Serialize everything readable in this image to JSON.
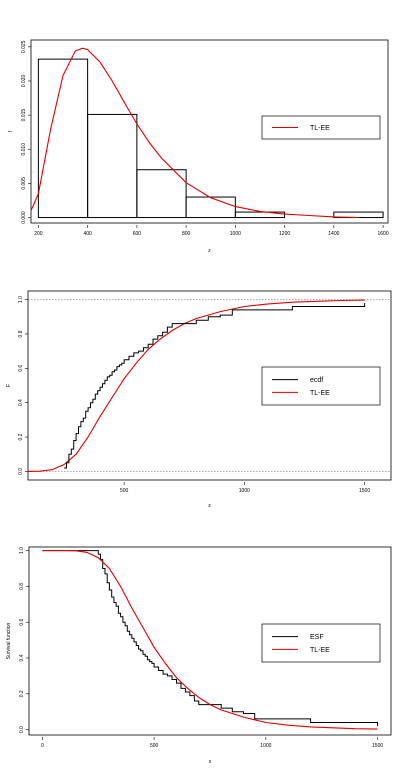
{
  "colors": {
    "fit": "#e00000",
    "data": "#000000"
  },
  "chart_data": [
    {
      "type": "histogram",
      "xlabel": "z",
      "ylabel": "f",
      "xlim": [
        170,
        1620
      ],
      "ylim": [
        -0.0008,
        0.026
      ],
      "xticks": [
        "200",
        "400",
        "600",
        "800",
        "1000",
        "1200",
        "1400",
        "1600"
      ],
      "yticks": [
        "0.000",
        "0.005",
        "0.010",
        "0.015",
        "0.020",
        "0.025"
      ],
      "bins": [
        {
          "from": 200,
          "to": 400,
          "density": 0.0232
        },
        {
          "from": 400,
          "to": 600,
          "density": 0.0151
        },
        {
          "from": 600,
          "to": 800,
          "density": 0.007
        },
        {
          "from": 800,
          "to": 1000,
          "density": 0.003
        },
        {
          "from": 1000,
          "to": 1200,
          "density": 0.0008
        },
        {
          "from": 1200,
          "to": 1400,
          "density": 0.0
        },
        {
          "from": 1400,
          "to": 1600,
          "density": 0.0008
        }
      ],
      "density_curve": {
        "name": "TL-EE",
        "x": [
          170,
          200,
          250,
          300,
          350,
          380,
          400,
          450,
          500,
          550,
          600,
          650,
          700,
          800,
          900,
          1000,
          1100,
          1200,
          1300,
          1400,
          1500
        ],
        "y": [
          0.001,
          0.0035,
          0.013,
          0.0208,
          0.0244,
          0.0248,
          0.0246,
          0.0228,
          0.02,
          0.0168,
          0.0137,
          0.011,
          0.0087,
          0.0051,
          0.0029,
          0.0016,
          0.0009,
          0.0005,
          0.0003,
          0.0001,
          0.0
        ]
      },
      "legend": {
        "position": "right",
        "entries": [
          "TL-EE"
        ]
      }
    },
    {
      "type": "line",
      "xlabel": "z",
      "ylabel": "F",
      "xlim": [
        100,
        1610
      ],
      "ylim": [
        -0.05,
        1.05
      ],
      "xticks": [
        "500",
        "1000",
        "1500"
      ],
      "yticks": [
        "0.0",
        "0.2",
        "0.4",
        "0.6",
        "0.8",
        "1.0"
      ],
      "reference_lines": [
        0,
        1
      ],
      "series": [
        {
          "name": "ecdf",
          "step": true,
          "x": [
            250,
            260,
            270,
            280,
            290,
            300,
            310,
            320,
            330,
            340,
            350,
            360,
            370,
            380,
            390,
            400,
            410,
            420,
            430,
            440,
            450,
            460,
            470,
            480,
            490,
            500,
            520,
            540,
            560,
            580,
            600,
            620,
            640,
            660,
            680,
            700,
            750,
            800,
            850,
            900,
            950,
            1200,
            1500
          ],
          "y": [
            0.02,
            0.05,
            0.1,
            0.13,
            0.18,
            0.22,
            0.26,
            0.29,
            0.31,
            0.35,
            0.37,
            0.4,
            0.42,
            0.45,
            0.47,
            0.49,
            0.51,
            0.53,
            0.55,
            0.56,
            0.58,
            0.59,
            0.61,
            0.62,
            0.63,
            0.65,
            0.67,
            0.69,
            0.7,
            0.72,
            0.74,
            0.77,
            0.79,
            0.81,
            0.84,
            0.86,
            0.86,
            0.88,
            0.9,
            0.91,
            0.94,
            0.96,
            0.98
          ]
        },
        {
          "name": "TL-EE",
          "x": [
            100,
            150,
            200,
            250,
            300,
            350,
            400,
            450,
            500,
            550,
            600,
            650,
            700,
            750,
            800,
            900,
            1000,
            1100,
            1200,
            1300,
            1400,
            1500
          ],
          "y": [
            0.0,
            0.001,
            0.01,
            0.04,
            0.1,
            0.2,
            0.32,
            0.43,
            0.54,
            0.63,
            0.71,
            0.77,
            0.82,
            0.86,
            0.89,
            0.93,
            0.96,
            0.975,
            0.985,
            0.99,
            0.995,
            0.997
          ]
        }
      ],
      "legend": {
        "position": "right",
        "entries": [
          "ecdf",
          "TL-EE"
        ]
      }
    },
    {
      "type": "line",
      "xlabel": "x",
      "ylabel": "Survival function",
      "xlim": [
        -60,
        1560
      ],
      "ylim": [
        -0.03,
        1.02
      ],
      "xticks": [
        "0",
        "500",
        "1000",
        "1500"
      ],
      "yticks": [
        "0.0",
        "0.2",
        "0.4",
        "0.6",
        "0.8",
        "1.0"
      ],
      "series": [
        {
          "name": "ESF",
          "step": true,
          "x": [
            0,
            250,
            260,
            270,
            280,
            290,
            300,
            310,
            320,
            330,
            340,
            350,
            360,
            370,
            380,
            390,
            400,
            410,
            420,
            430,
            440,
            450,
            460,
            470,
            480,
            490,
            500,
            520,
            540,
            560,
            580,
            600,
            620,
            640,
            660,
            680,
            700,
            750,
            800,
            850,
            900,
            950,
            1200,
            1500
          ],
          "y": [
            1.0,
            0.98,
            0.95,
            0.9,
            0.87,
            0.82,
            0.78,
            0.74,
            0.71,
            0.69,
            0.65,
            0.63,
            0.6,
            0.58,
            0.55,
            0.53,
            0.51,
            0.49,
            0.47,
            0.45,
            0.44,
            0.42,
            0.41,
            0.39,
            0.38,
            0.37,
            0.35,
            0.33,
            0.31,
            0.3,
            0.28,
            0.26,
            0.23,
            0.21,
            0.19,
            0.16,
            0.14,
            0.14,
            0.12,
            0.1,
            0.09,
            0.06,
            0.04,
            0.02
          ]
        },
        {
          "name": "TL-EE",
          "x": [
            0,
            100,
            150,
            200,
            250,
            300,
            350,
            400,
            450,
            500,
            550,
            600,
            650,
            700,
            750,
            800,
            900,
            1000,
            1100,
            1200,
            1300,
            1400,
            1500
          ],
          "y": [
            1.0,
            1.0,
            0.999,
            0.99,
            0.96,
            0.9,
            0.8,
            0.68,
            0.57,
            0.46,
            0.37,
            0.29,
            0.23,
            0.18,
            0.14,
            0.11,
            0.07,
            0.04,
            0.025,
            0.015,
            0.01,
            0.005,
            0.003
          ]
        }
      ],
      "legend": {
        "position": "right",
        "entries": [
          "ESF",
          "TL-EE"
        ]
      }
    }
  ]
}
